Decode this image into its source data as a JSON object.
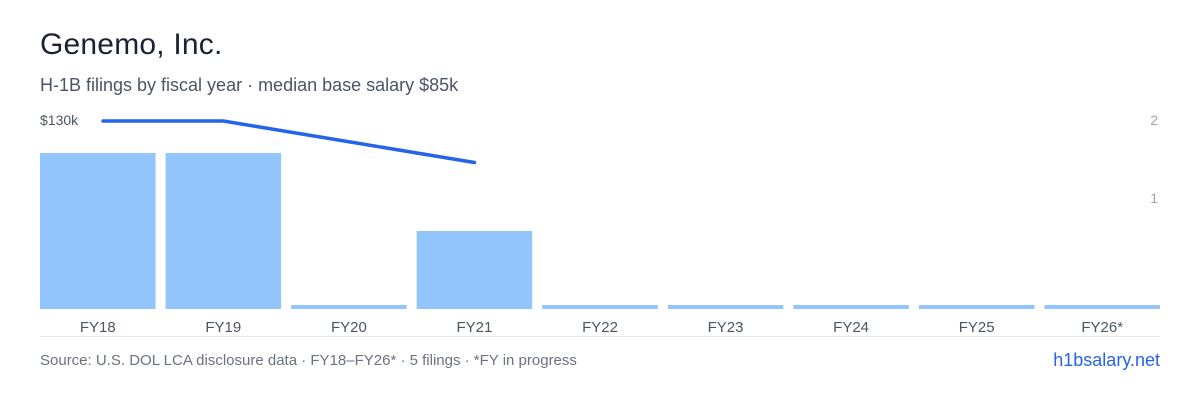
{
  "header": {
    "title": "Genemo, Inc.",
    "subtitle": "H-1B filings by fiscal year · median base salary $85k"
  },
  "footer": {
    "source": "Source: U.S. DOL LCA disclosure data · FY18–FY26* · 5 filings · *FY in progress",
    "site": "h1bsalary.net"
  },
  "colors": {
    "bar": "#93c5fd",
    "line": "#2563eb",
    "axis_text": "#9ca3af",
    "label_text": "#4b5563",
    "baseline": "#e5e7eb"
  },
  "chart_data": {
    "type": "bar",
    "categories": [
      "FY18",
      "FY19",
      "FY20",
      "FY21",
      "FY22",
      "FY23",
      "FY24",
      "FY25",
      "FY26*"
    ],
    "series": [
      {
        "type": "bar",
        "axis": "right",
        "values": [
          2,
          2,
          0,
          1,
          0,
          0,
          0,
          0,
          0
        ]
      },
      {
        "type": "line",
        "axis": "left",
        "values": [
          130000,
          130000,
          115000,
          100000,
          null,
          null,
          null,
          null,
          null
        ]
      }
    ],
    "left_axis": {
      "label": "$130k",
      "value": 130000
    },
    "right_axis": {
      "ticks": [
        "2",
        "1"
      ],
      "ylim": [
        0,
        2
      ]
    },
    "grid": false,
    "legend": "none"
  }
}
